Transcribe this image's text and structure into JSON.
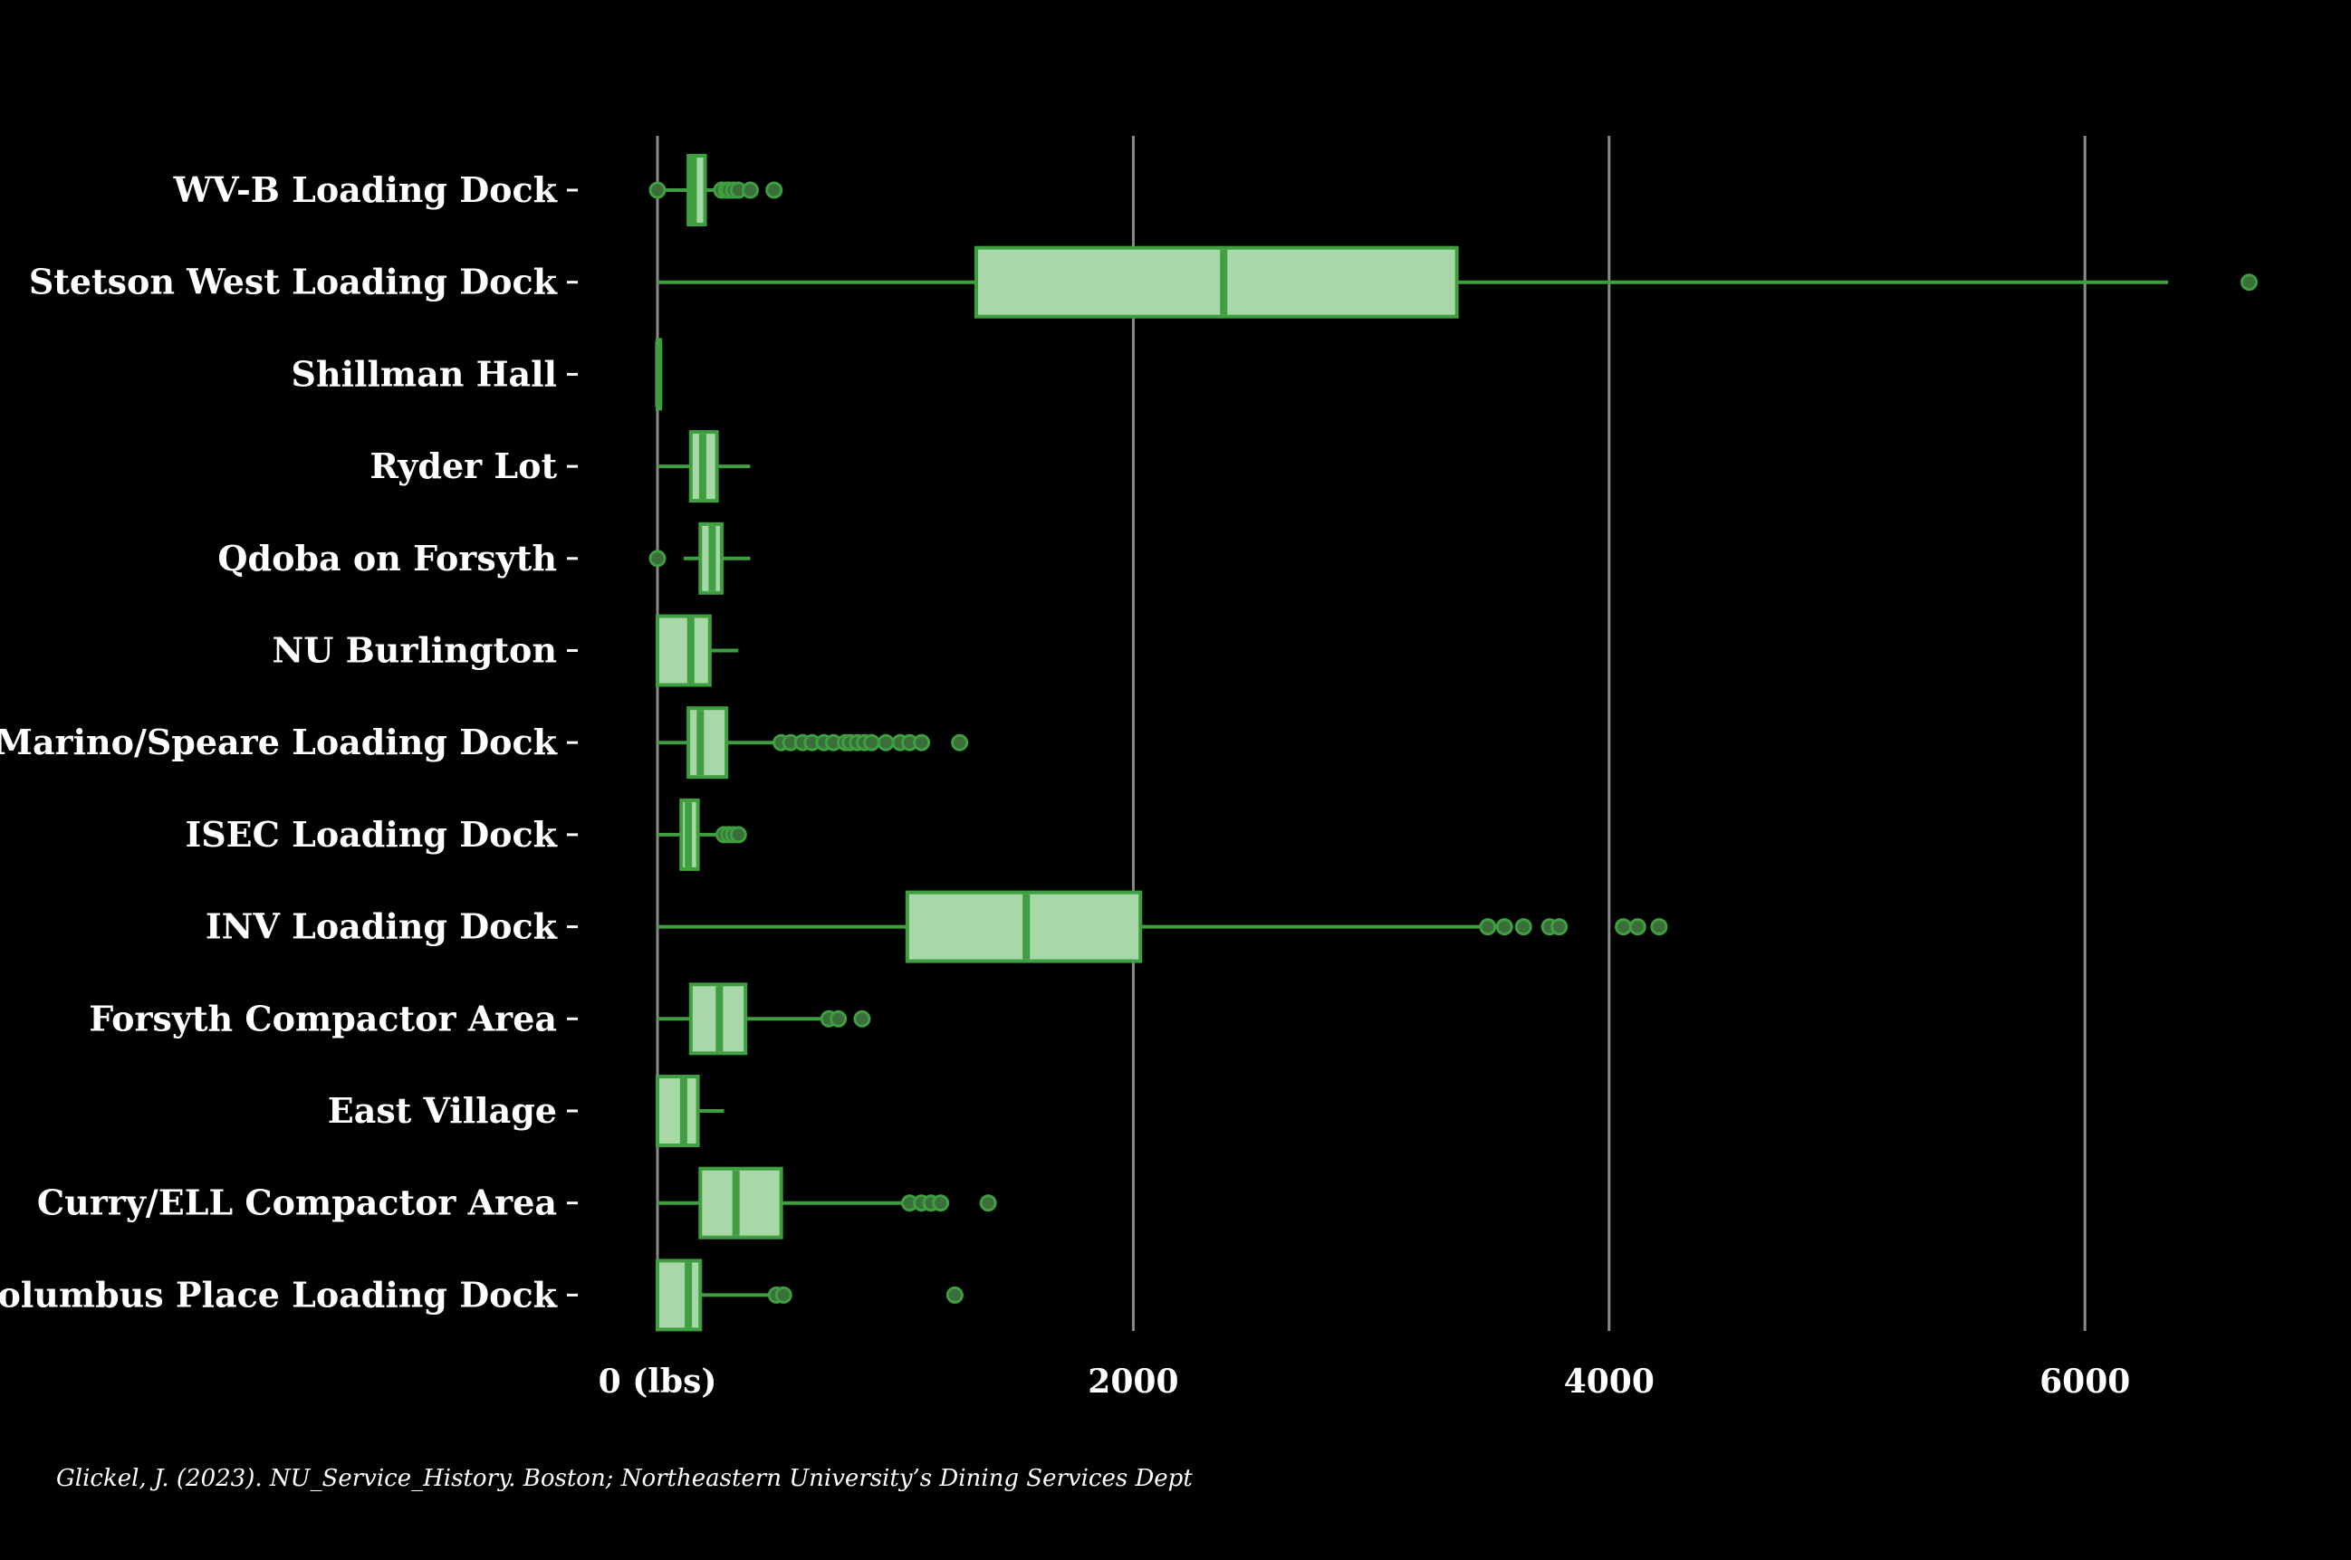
{
  "chart_data": {
    "type": "boxplot",
    "orientation": "horizontal",
    "title": "",
    "xlabel": "",
    "ylabel": "",
    "xlim": [
      0,
      6700
    ],
    "x_ticks": [
      {
        "value": 0,
        "label": "0 (lbs)"
      },
      {
        "value": 2000,
        "label": "2000"
      },
      {
        "value": 4000,
        "label": "4000"
      },
      {
        "value": 6000,
        "label": "6000"
      }
    ],
    "grid": "vertical",
    "legend": "none",
    "colors": {
      "background": "#000000",
      "box_fill": "#a8d8a8",
      "box_edge": "#3f9e3f",
      "grid": "#8a8a8a",
      "text": "#ffffff",
      "outlier_fill": "#3a6e3a"
    },
    "categories": [
      "WV-B Loading Dock",
      "Stetson West Loading Dock",
      "Shillman  Hall",
      "Ryder Lot",
      "Qdoba  on  Forsyth",
      "NU Burlington",
      "Marino/Speare Loading Dock",
      "ISEC Loading Dock",
      "INV Loading Dock",
      "Forsyth  Compactor Area",
      "East Village",
      "Curry/ELL Compactor Area",
      "Columbus Place Loading Dock"
    ],
    "boxes": [
      {
        "category": "WV-B Loading Dock",
        "whisker_low": 0,
        "q1": 130,
        "median": 150,
        "q3": 200,
        "whisker_high": 260,
        "outliers": [
          0,
          270,
          290,
          300,
          320,
          340,
          390,
          490
        ]
      },
      {
        "category": "Stetson West Loading Dock",
        "whisker_low": 0,
        "q1": 1340,
        "median": 2380,
        "q3": 3360,
        "whisker_high": 6350,
        "outliers": [
          6690
        ]
      },
      {
        "category": "Shillman  Hall",
        "whisker_low": 0,
        "q1": 0,
        "median": 5,
        "q3": 10,
        "whisker_high": 10,
        "outliers": []
      },
      {
        "category": "Ryder Lot",
        "whisker_low": 0,
        "q1": 140,
        "median": 190,
        "q3": 250,
        "whisker_high": 390,
        "outliers": []
      },
      {
        "category": "Qdoba  on  Forsyth",
        "whisker_low": 110,
        "q1": 180,
        "median": 230,
        "q3": 270,
        "whisker_high": 390,
        "outliers": [
          0
        ]
      },
      {
        "category": "NU Burlington",
        "whisker_low": 0,
        "q1": 0,
        "median": 140,
        "q3": 220,
        "whisker_high": 340,
        "outliers": []
      },
      {
        "category": "Marino/Speare Loading Dock",
        "whisker_low": 0,
        "q1": 130,
        "median": 180,
        "q3": 290,
        "whisker_high": 510,
        "outliers": [
          520,
          560,
          610,
          650,
          700,
          740,
          790,
          810,
          840,
          870,
          900,
          960,
          1020,
          1060,
          1110,
          1270
        ]
      },
      {
        "category": "ISEC Loading Dock",
        "whisker_low": 0,
        "q1": 100,
        "median": 130,
        "q3": 170,
        "whisker_high": 270,
        "outliers": [
          280,
          300,
          320,
          340
        ]
      },
      {
        "category": "INV Loading Dock",
        "whisker_low": 0,
        "q1": 1050,
        "median": 1550,
        "q3": 2030,
        "whisker_high": 3480,
        "outliers": [
          3490,
          3560,
          3640,
          3750,
          3790,
          4060,
          4120,
          4210
        ]
      },
      {
        "category": "Forsyth  Compactor Area",
        "whisker_low": 0,
        "q1": 140,
        "median": 260,
        "q3": 370,
        "whisker_high": 690,
        "outliers": [
          720,
          760,
          860
        ]
      },
      {
        "category": "East Village",
        "whisker_low": 0,
        "q1": 0,
        "median": 110,
        "q3": 170,
        "whisker_high": 280,
        "outliers": []
      },
      {
        "category": "Curry/ELL Compactor Area",
        "whisker_low": 0,
        "q1": 180,
        "median": 330,
        "q3": 520,
        "whisker_high": 1050,
        "outliers": [
          1060,
          1110,
          1150,
          1190,
          1390
        ]
      },
      {
        "category": "Columbus Place Loading Dock",
        "whisker_low": 0,
        "q1": 0,
        "median": 130,
        "q3": 180,
        "whisker_high": 480,
        "outliers": [
          500,
          530,
          1250
        ]
      }
    ],
    "caption": "Glickel, J. (2023). NU_Service_History. Boston; Northeastern University’s Dining Services Dept"
  }
}
